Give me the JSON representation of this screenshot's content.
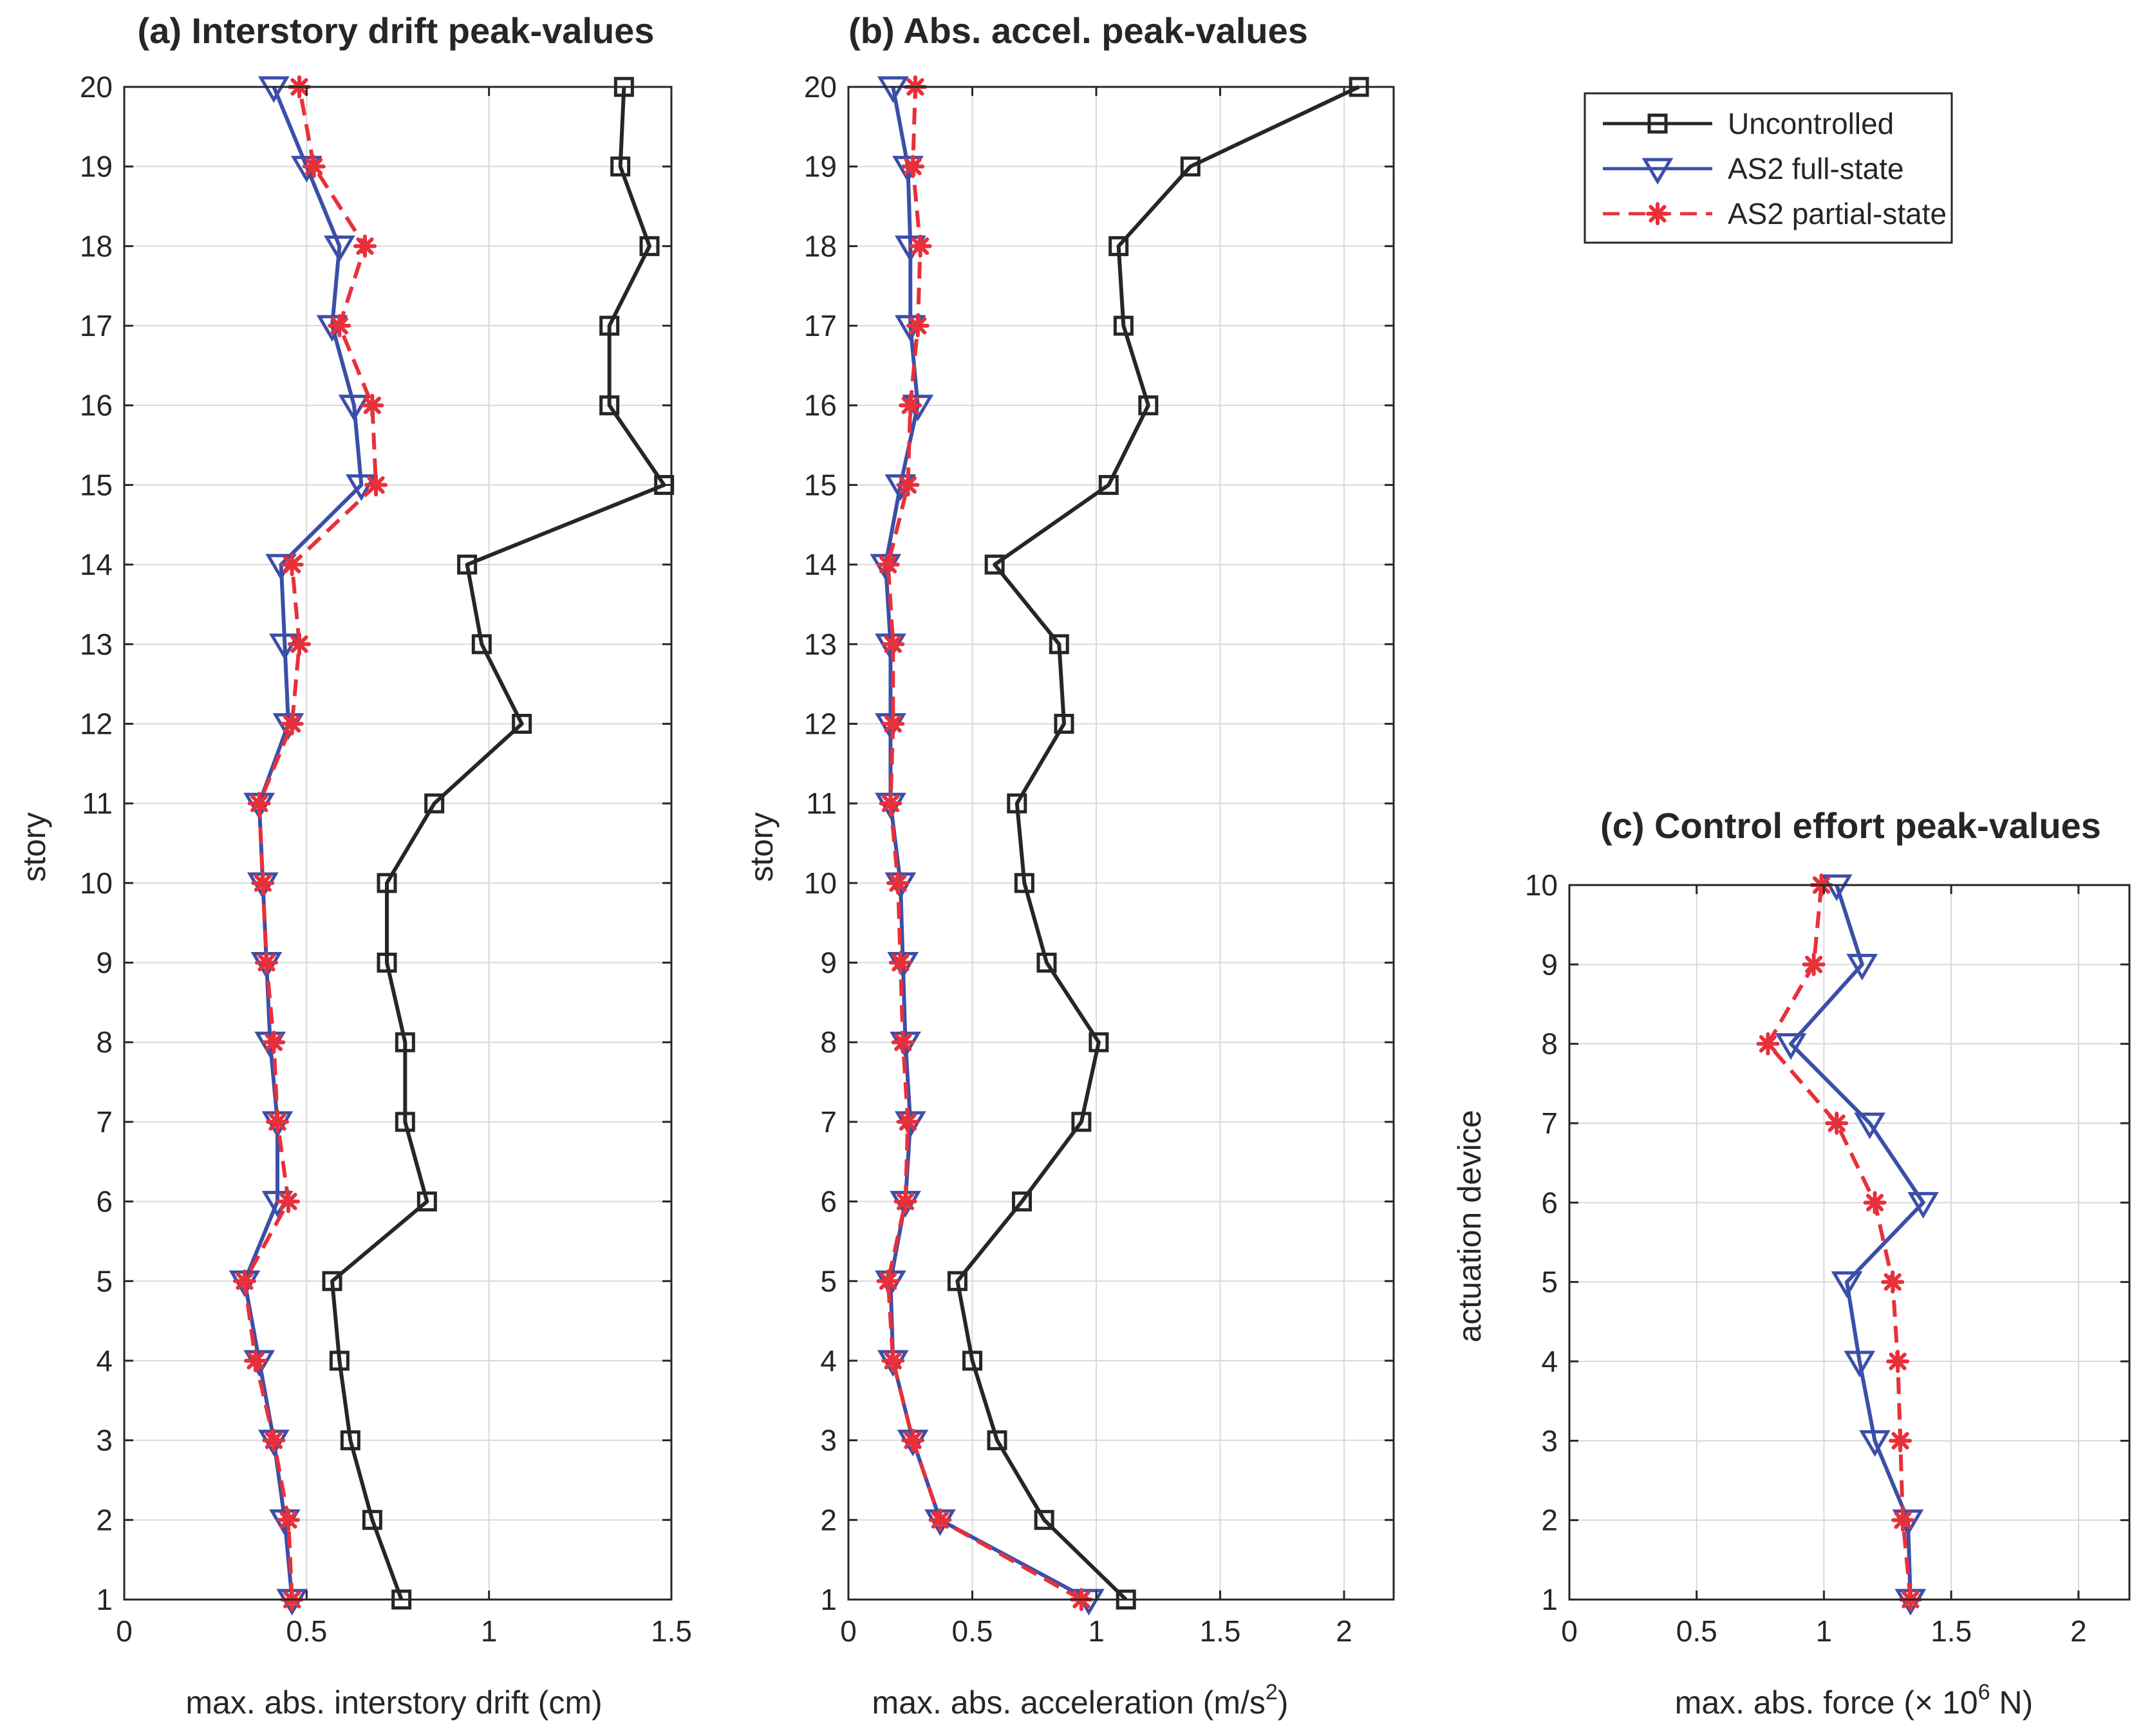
{
  "legend": {
    "entries": [
      {
        "name": "Uncontrolled",
        "color": "#262626",
        "marker": "square",
        "dash": "solid"
      },
      {
        "name": "AS2 full-state",
        "color": "#3b4fa8",
        "marker": "triangle-down",
        "dash": "solid"
      },
      {
        "name": "AS2 partial-state",
        "color": "#e8303a",
        "marker": "asterisk",
        "dash": "dashed"
      }
    ]
  },
  "chart_data": [
    {
      "type": "line",
      "title": "(a) Interstory drift peak-values",
      "xlabel": "max. abs. interstory drift (cm)",
      "ylabel": "story",
      "xlim": [
        0,
        1.5
      ],
      "ylim": [
        1,
        20
      ],
      "xticks": [
        0,
        0.5,
        1,
        1.5
      ],
      "xtick_labels": [
        "0",
        "0.5",
        "1",
        "1.5"
      ],
      "yticks": [
        1,
        2,
        3,
        4,
        5,
        6,
        7,
        8,
        9,
        10,
        11,
        12,
        13,
        14,
        15,
        16,
        17,
        18,
        19,
        20
      ],
      "grid": true,
      "series": [
        {
          "name": "Uncontrolled",
          "y": [
            1,
            2,
            3,
            4,
            5,
            6,
            7,
            8,
            9,
            10,
            11,
            12,
            13,
            14,
            15,
            16,
            17,
            18,
            19,
            20
          ],
          "x": [
            0.76,
            0.68,
            0.62,
            0.59,
            0.57,
            0.83,
            0.77,
            0.77,
            0.72,
            0.72,
            0.85,
            1.09,
            0.98,
            0.94,
            1.48,
            1.33,
            1.33,
            1.44,
            1.36,
            1.37
          ]
        },
        {
          "name": "AS2 full-state",
          "y": [
            1,
            2,
            3,
            4,
            5,
            6,
            7,
            8,
            9,
            10,
            11,
            12,
            13,
            14,
            15,
            16,
            17,
            18,
            19,
            20
          ],
          "x": [
            0.46,
            0.44,
            0.41,
            0.37,
            0.33,
            0.42,
            0.42,
            0.4,
            0.39,
            0.38,
            0.37,
            0.45,
            0.44,
            0.43,
            0.65,
            0.63,
            0.57,
            0.59,
            0.5,
            0.41
          ]
        },
        {
          "name": "AS2 partial-state",
          "y": [
            1,
            2,
            3,
            4,
            5,
            6,
            7,
            8,
            9,
            10,
            11,
            12,
            13,
            14,
            15,
            16,
            17,
            18,
            19,
            20
          ],
          "x": [
            0.46,
            0.45,
            0.41,
            0.36,
            0.33,
            0.45,
            0.42,
            0.41,
            0.39,
            0.38,
            0.37,
            0.46,
            0.48,
            0.46,
            0.69,
            0.68,
            0.59,
            0.66,
            0.52,
            0.48
          ]
        }
      ]
    },
    {
      "type": "line",
      "title": "(b) Abs. accel. peak-values",
      "xlabel": "max. abs. acceleration (m/s",
      "xlabel_sup": "2",
      "xlabel_end": ")",
      "ylabel": "story",
      "xlim": [
        0,
        2.2
      ],
      "ylim": [
        1,
        20
      ],
      "xticks": [
        0,
        0.5,
        1,
        1.5,
        2
      ],
      "xtick_labels": [
        "0",
        "0.5",
        "1",
        "1.5",
        "2"
      ],
      "yticks": [
        1,
        2,
        3,
        4,
        5,
        6,
        7,
        8,
        9,
        10,
        11,
        12,
        13,
        14,
        15,
        16,
        17,
        18,
        19,
        20
      ],
      "grid": true,
      "series": [
        {
          "name": "Uncontrolled",
          "y": [
            1,
            2,
            3,
            4,
            5,
            6,
            7,
            8,
            9,
            10,
            11,
            12,
            13,
            14,
            15,
            16,
            17,
            18,
            19,
            20
          ],
          "x": [
            1.12,
            0.79,
            0.6,
            0.5,
            0.44,
            0.7,
            0.94,
            1.01,
            0.8,
            0.71,
            0.68,
            0.87,
            0.85,
            0.59,
            1.05,
            1.21,
            1.11,
            1.09,
            1.38,
            2.06
          ]
        },
        {
          "name": "AS2 full-state",
          "y": [
            1,
            2,
            3,
            4,
            5,
            6,
            7,
            8,
            9,
            10,
            11,
            12,
            13,
            14,
            15,
            16,
            17,
            18,
            19,
            20
          ],
          "x": [
            0.97,
            0.37,
            0.26,
            0.18,
            0.17,
            0.23,
            0.25,
            0.23,
            0.22,
            0.21,
            0.17,
            0.17,
            0.17,
            0.15,
            0.21,
            0.28,
            0.25,
            0.25,
            0.24,
            0.18
          ]
        },
        {
          "name": "AS2 partial-state",
          "y": [
            1,
            2,
            3,
            4,
            5,
            6,
            7,
            8,
            9,
            10,
            11,
            12,
            13,
            14,
            15,
            16,
            17,
            18,
            19,
            20
          ],
          "x": [
            0.94,
            0.37,
            0.26,
            0.18,
            0.16,
            0.23,
            0.24,
            0.22,
            0.21,
            0.2,
            0.17,
            0.18,
            0.18,
            0.16,
            0.24,
            0.25,
            0.28,
            0.29,
            0.26,
            0.27
          ]
        }
      ]
    },
    {
      "type": "line",
      "title": "(c) Control effort peak-values",
      "xlabel": "max. abs. force (",
      "xlabel_mid": "× 10",
      "xlabel_sup": "6",
      "xlabel_end": " N)",
      "ylabel": "actuation device",
      "xlim": [
        0,
        2.2
      ],
      "ylim": [
        1,
        10
      ],
      "xticks": [
        0,
        0.5,
        1,
        1.5,
        2
      ],
      "xtick_labels": [
        "0",
        "0.5",
        "1",
        "1.5",
        "2"
      ],
      "yticks": [
        1,
        2,
        3,
        4,
        5,
        6,
        7,
        8,
        9,
        10
      ],
      "grid": true,
      "series": [
        {
          "name": "AS2 full-state",
          "y": [
            1,
            2,
            3,
            4,
            5,
            6,
            7,
            8,
            9,
            10
          ],
          "x": [
            1.34,
            1.33,
            1.2,
            1.14,
            1.09,
            1.39,
            1.18,
            0.87,
            1.15,
            1.05
          ]
        },
        {
          "name": "AS2 partial-state",
          "y": [
            1,
            2,
            3,
            4,
            5,
            6,
            7,
            8,
            9,
            10
          ],
          "x": [
            1.34,
            1.31,
            1.3,
            1.29,
            1.27,
            1.2,
            1.05,
            0.78,
            0.96,
            0.99
          ]
        }
      ]
    }
  ]
}
